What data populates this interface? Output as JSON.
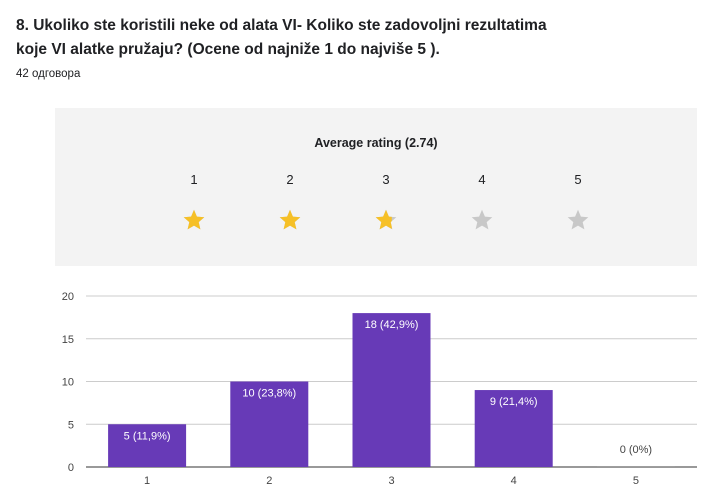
{
  "question": {
    "line1": "8. Ukoliko ste koristili neke od alata VI- Koliko ste zadovoljni rezultatima",
    "line2": "koje VI alatke pružaju? (Ocene od najniže 1 do najviše 5 )."
  },
  "responses_count": "42 одговора",
  "rating": {
    "title": "Average rating (2.74)",
    "value": 2.74,
    "max": 5,
    "star_labels": [
      "1",
      "2",
      "3",
      "4",
      "5"
    ],
    "icon": "star-icon",
    "filled_color": "#f6c026",
    "empty_color": "#c8c8c8"
  },
  "chart_data": {
    "type": "bar",
    "categories": [
      "1",
      "2",
      "3",
      "4",
      "5"
    ],
    "values": [
      5,
      10,
      18,
      9,
      0
    ],
    "data_labels": [
      "5 (11,9%)",
      "10 (23,8%)",
      "18 (42,9%)",
      "9 (21,4%)",
      "0 (0%)"
    ],
    "ylim": [
      0,
      20
    ],
    "yticks": [
      "0",
      "5",
      "10",
      "15",
      "20"
    ],
    "xlabel": "",
    "ylabel": "",
    "grid": true,
    "bar_color": "#673ab7"
  }
}
